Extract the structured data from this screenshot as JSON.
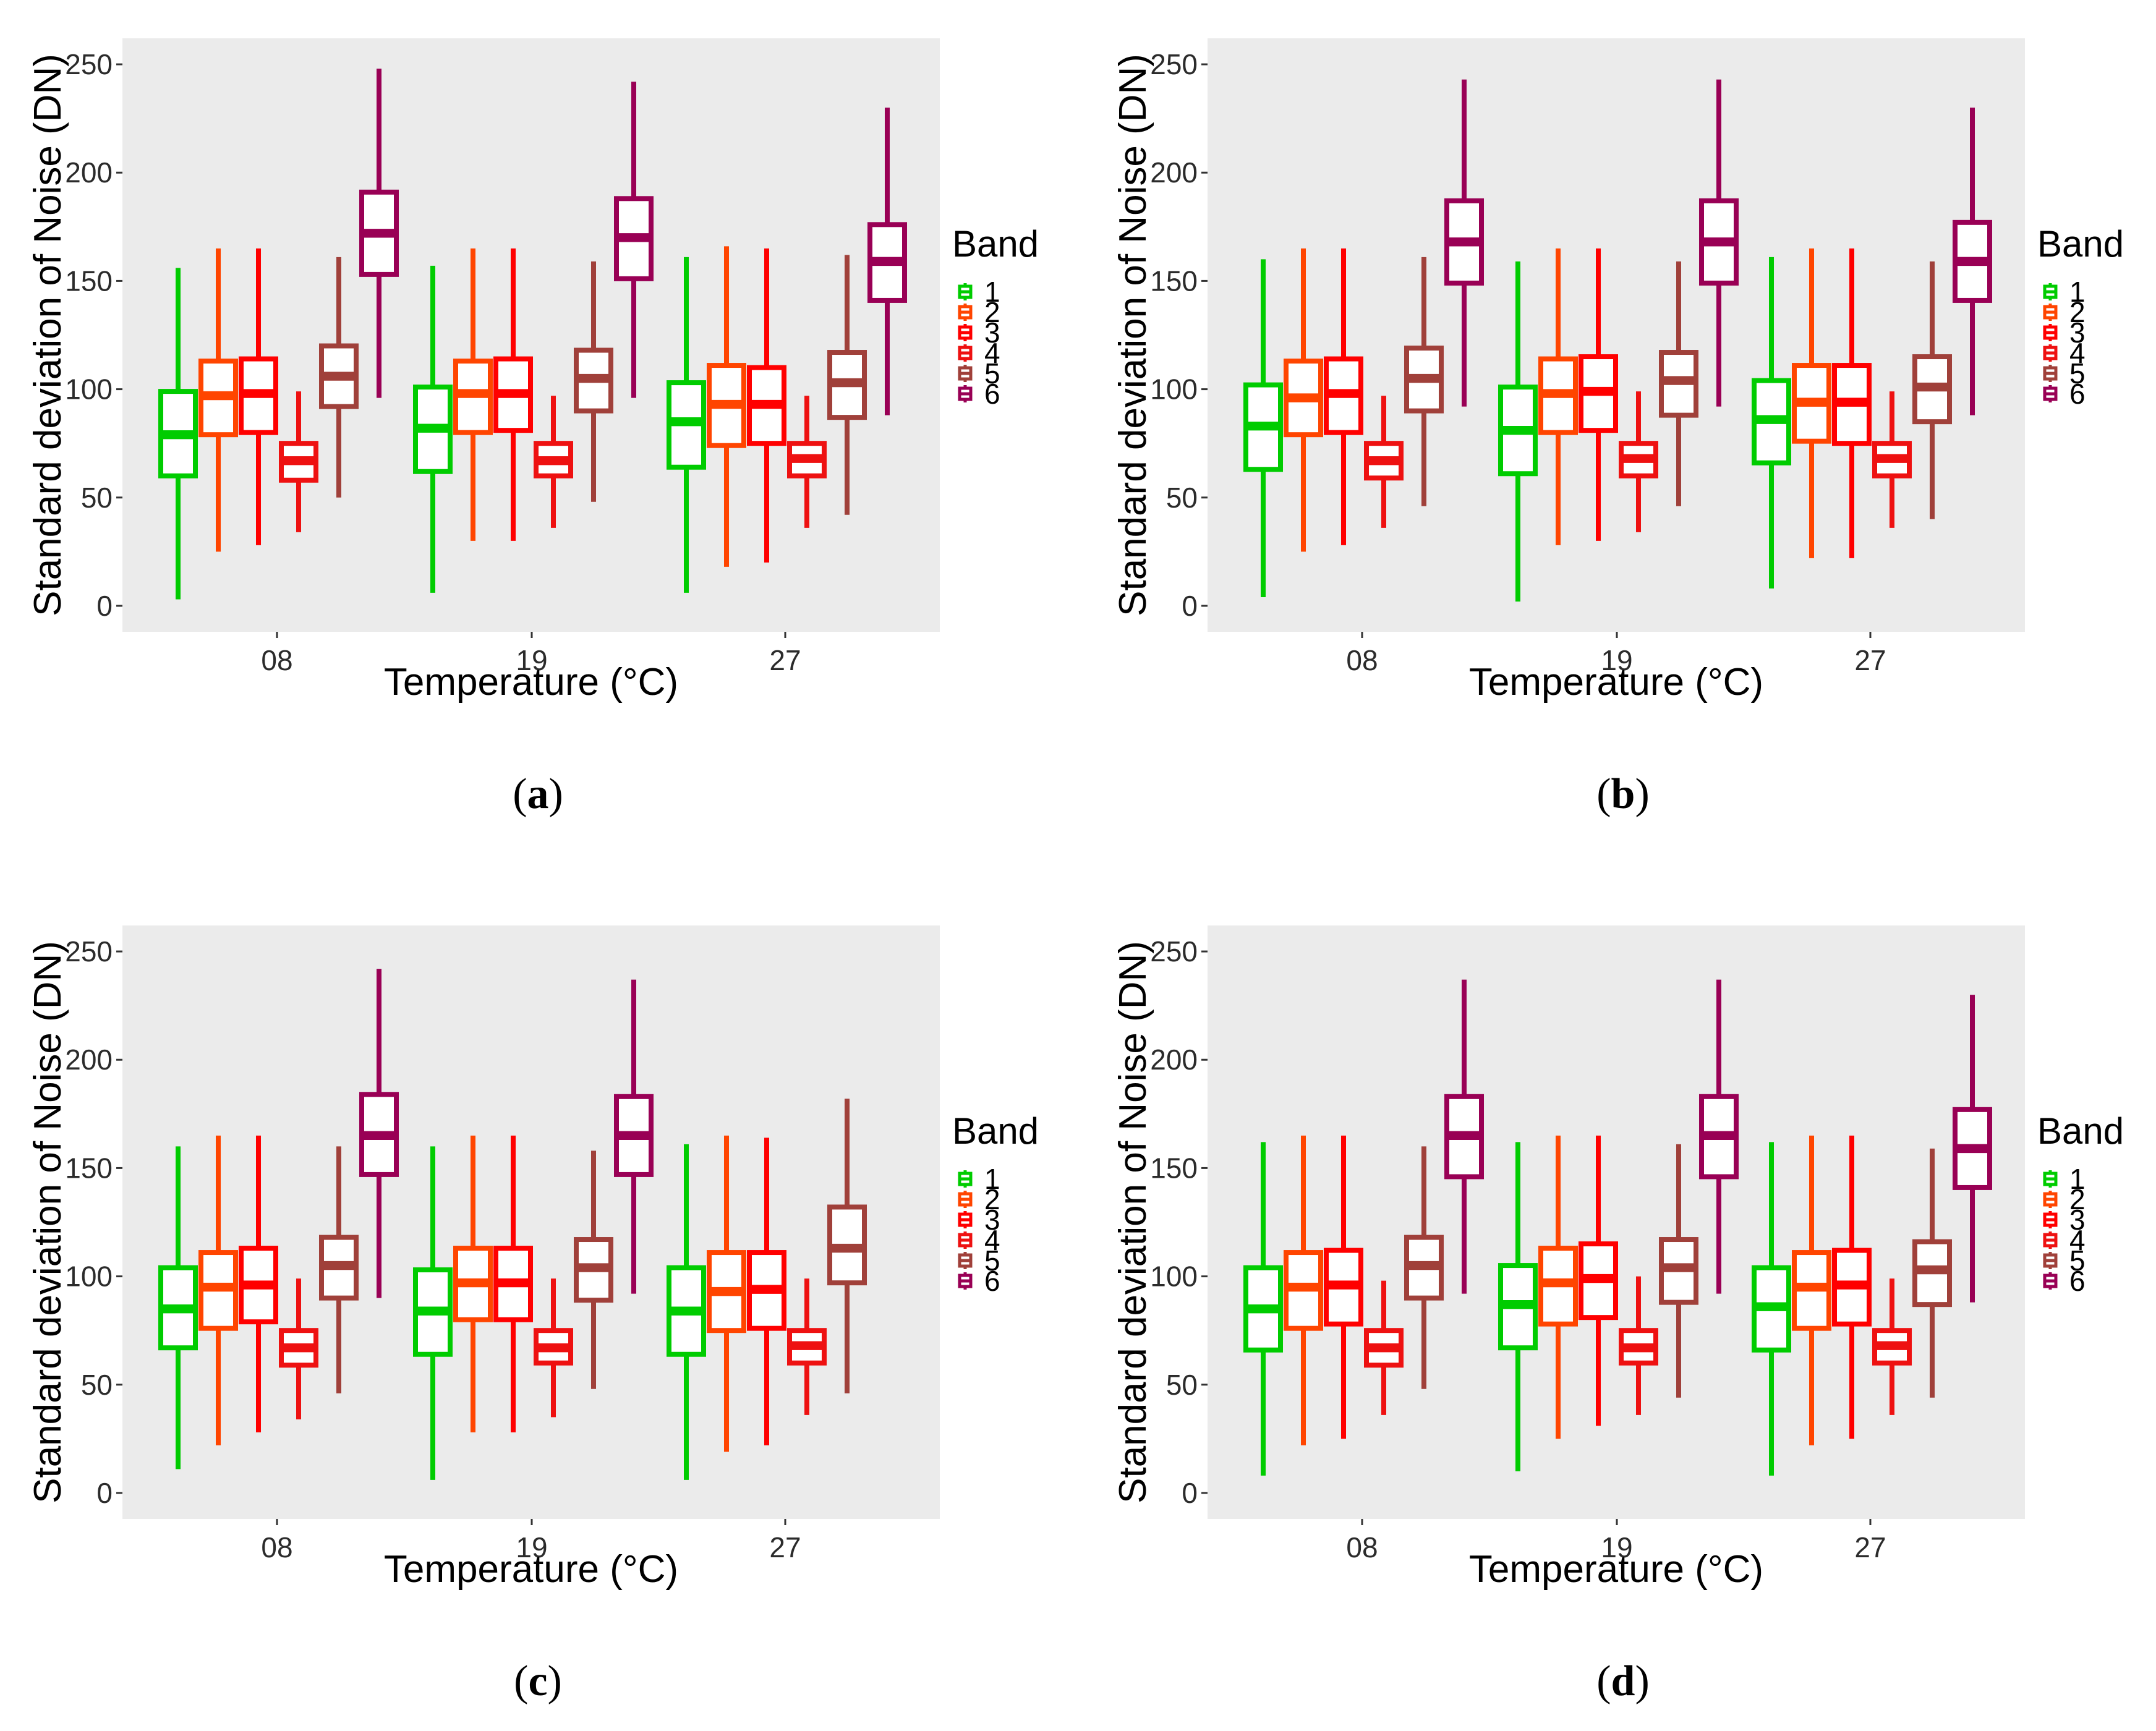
{
  "colors": {
    "panel_bg": "#EBEBEB",
    "band_1": "#00CC00",
    "band_2": "#FF4500",
    "band_3": "#FF0000",
    "band_4": "#EE1111",
    "band_5": "#A0403A",
    "band_6": "#990055"
  },
  "chart_data": [
    {
      "type": "box",
      "panel_label": "a",
      "xlabel": "Temperature (°C)",
      "ylabel": "Standard deviation of Noise (DN)",
      "ylim": [
        -12,
        262
      ],
      "yticks": [
        "0",
        "50",
        "100",
        "150",
        "200",
        "250"
      ],
      "categories": [
        "08",
        "19",
        "27"
      ],
      "legend": {
        "title": "Band",
        "items": [
          "1",
          "2",
          "3",
          "4",
          "5",
          "6"
        ]
      },
      "series": [
        {
          "name": "1",
          "stats": [
            [
              3,
              60,
              79,
              99,
              156
            ],
            [
              6,
              62,
              82,
              101,
              157
            ],
            [
              6,
              64,
              85,
              103,
              161
            ]
          ]
        },
        {
          "name": "2",
          "stats": [
            [
              25,
              79,
              97,
              113,
              165
            ],
            [
              30,
              80,
              98,
              113,
              165
            ],
            [
              18,
              74,
              93,
              111,
              166
            ]
          ]
        },
        {
          "name": "3",
          "stats": [
            [
              28,
              80,
              98,
              114,
              165
            ],
            [
              30,
              81,
              98,
              114,
              165
            ],
            [
              20,
              75,
              93,
              110,
              165
            ]
          ]
        },
        {
          "name": "4",
          "stats": [
            [
              34,
              58,
              67,
              75,
              99
            ],
            [
              36,
              60,
              67,
              75,
              97
            ],
            [
              36,
              60,
              68,
              75,
              97
            ]
          ]
        },
        {
          "name": "5",
          "stats": [
            [
              50,
              92,
              106,
              120,
              161
            ],
            [
              48,
              90,
              105,
              118,
              159
            ],
            [
              42,
              87,
              103,
              117,
              162
            ]
          ]
        },
        {
          "name": "6",
          "stats": [
            [
              96,
              153,
              172,
              191,
              248
            ],
            [
              96,
              151,
              170,
              188,
              242
            ],
            [
              88,
              141,
              159,
              176,
              230
            ]
          ]
        }
      ]
    },
    {
      "type": "box",
      "panel_label": "b",
      "xlabel": "Temperature (°C)",
      "ylabel": "Standard deviation of Noise (DN)",
      "ylim": [
        -12,
        262
      ],
      "yticks": [
        "0",
        "50",
        "100",
        "150",
        "200",
        "250"
      ],
      "categories": [
        "08",
        "19",
        "27"
      ],
      "legend": {
        "title": "Band",
        "items": [
          "1",
          "2",
          "3",
          "4",
          "5",
          "6"
        ]
      },
      "series": [
        {
          "name": "1",
          "stats": [
            [
              4,
              63,
              83,
              102,
              160
            ],
            [
              2,
              61,
              81,
              101,
              159
            ],
            [
              8,
              66,
              86,
              104,
              161
            ]
          ]
        },
        {
          "name": "2",
          "stats": [
            [
              25,
              79,
              96,
              113,
              165
            ],
            [
              28,
              80,
              98,
              114,
              165
            ],
            [
              22,
              76,
              94,
              111,
              165
            ]
          ]
        },
        {
          "name": "3",
          "stats": [
            [
              28,
              80,
              98,
              114,
              165
            ],
            [
              30,
              81,
              99,
              115,
              165
            ],
            [
              22,
              75,
              94,
              111,
              165
            ]
          ]
        },
        {
          "name": "4",
          "stats": [
            [
              36,
              59,
              67,
              75,
              97
            ],
            [
              34,
              60,
              68,
              75,
              99
            ],
            [
              36,
              60,
              68,
              75,
              99
            ]
          ]
        },
        {
          "name": "5",
          "stats": [
            [
              46,
              90,
              105,
              119,
              161
            ],
            [
              46,
              88,
              104,
              117,
              159
            ],
            [
              40,
              85,
              101,
              115,
              159
            ]
          ]
        },
        {
          "name": "6",
          "stats": [
            [
              92,
              149,
              168,
              187,
              243
            ],
            [
              92,
              149,
              168,
              187,
              243
            ],
            [
              88,
              141,
              159,
              177,
              230
            ]
          ]
        }
      ]
    },
    {
      "type": "box",
      "panel_label": "c",
      "xlabel": "Temperature (°C)",
      "ylabel": "Standard deviation of Noise (DN)",
      "ylim": [
        -12,
        262
      ],
      "yticks": [
        "0",
        "50",
        "100",
        "150",
        "200",
        "250"
      ],
      "categories": [
        "08",
        "19",
        "27"
      ],
      "legend": {
        "title": "Band",
        "items": [
          "1",
          "2",
          "3",
          "4",
          "5",
          "6"
        ]
      },
      "series": [
        {
          "name": "1",
          "stats": [
            [
              11,
              67,
              85,
              104,
              160
            ],
            [
              6,
              64,
              84,
              103,
              160
            ],
            [
              6,
              64,
              84,
              104,
              161
            ]
          ]
        },
        {
          "name": "2",
          "stats": [
            [
              22,
              76,
              95,
              111,
              165
            ],
            [
              28,
              80,
              97,
              113,
              165
            ],
            [
              19,
              75,
              93,
              111,
              165
            ]
          ]
        },
        {
          "name": "3",
          "stats": [
            [
              28,
              79,
              96,
              113,
              165
            ],
            [
              28,
              80,
              97,
              113,
              165
            ],
            [
              22,
              76,
              94,
              111,
              164
            ]
          ]
        },
        {
          "name": "4",
          "stats": [
            [
              34,
              59,
              67,
              75,
              99
            ],
            [
              35,
              60,
              67,
              75,
              99
            ],
            [
              36,
              60,
              68,
              75,
              99
            ]
          ]
        },
        {
          "name": "5",
          "stats": [
            [
              46,
              90,
              105,
              118,
              160
            ],
            [
              48,
              89,
              104,
              117,
              158
            ],
            [
              46,
              97,
              113,
              132,
              182
            ]
          ]
        },
        {
          "name": "6",
          "stats": [
            [
              90,
              147,
              165,
              184,
              242
            ],
            [
              92,
              147,
              165,
              183,
              237
            ],
            null
          ]
        }
      ]
    },
    {
      "type": "box",
      "panel_label": "d",
      "xlabel": "Temperature (°C)",
      "ylabel": "Standard deviation of Noise (DN)",
      "ylim": [
        -12,
        262
      ],
      "yticks": [
        "0",
        "50",
        "100",
        "150",
        "200",
        "250"
      ],
      "categories": [
        "08",
        "19",
        "27"
      ],
      "legend": {
        "title": "Band",
        "items": [
          "1",
          "2",
          "3",
          "4",
          "5",
          "6"
        ]
      },
      "series": [
        {
          "name": "1",
          "stats": [
            [
              8,
              66,
              85,
              104,
              162
            ],
            [
              10,
              67,
              87,
              105,
              162
            ],
            [
              8,
              66,
              86,
              104,
              162
            ]
          ]
        },
        {
          "name": "2",
          "stats": [
            [
              22,
              76,
              95,
              111,
              165
            ],
            [
              25,
              78,
              97,
              113,
              165
            ],
            [
              22,
              76,
              95,
              111,
              165
            ]
          ]
        },
        {
          "name": "3",
          "stats": [
            [
              25,
              78,
              96,
              112,
              165
            ],
            [
              31,
              81,
              99,
              115,
              165
            ],
            [
              25,
              78,
              96,
              112,
              165
            ]
          ]
        },
        {
          "name": "4",
          "stats": [
            [
              36,
              59,
              67,
              75,
              98
            ],
            [
              36,
              60,
              67,
              75,
              100
            ],
            [
              36,
              60,
              68,
              75,
              99
            ]
          ]
        },
        {
          "name": "5",
          "stats": [
            [
              48,
              90,
              105,
              118,
              160
            ],
            [
              44,
              88,
              104,
              117,
              161
            ],
            [
              44,
              87,
              103,
              116,
              159
            ]
          ]
        },
        {
          "name": "6",
          "stats": [
            [
              92,
              146,
              165,
              183,
              237
            ],
            [
              92,
              146,
              165,
              183,
              237
            ],
            [
              88,
              141,
              159,
              177,
              230
            ]
          ]
        }
      ]
    }
  ]
}
